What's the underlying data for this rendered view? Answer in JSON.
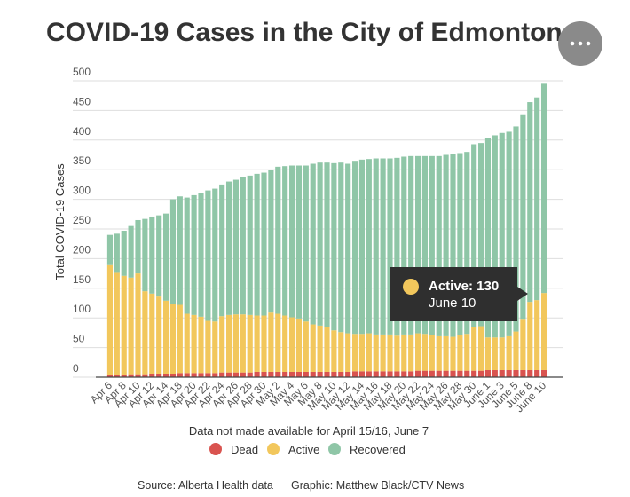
{
  "chart_data": {
    "type": "stacked_bar",
    "title": "COVID-19 Cases in the City of Edmonton",
    "ylabel": "Total COVID-19 Cases",
    "note": "Data not made available for April 15/16, June 7",
    "source": "Source: Alberta Health data",
    "credit": "Graphic: Matthew Black/CTV News",
    "tooltip": {
      "label": "Active: 130",
      "date": "June 10"
    },
    "categories": [
      "Apr 6",
      null,
      "Apr 8",
      null,
      "Apr 10",
      null,
      "Apr 12",
      null,
      "Apr 14",
      null,
      "Apr 18",
      null,
      "Apr 20",
      null,
      "Apr 22",
      null,
      "Apr 24",
      null,
      "Apr 26",
      null,
      "Apr 28",
      null,
      "Apr 30",
      null,
      "May 2",
      null,
      "May 4",
      null,
      "May 6",
      null,
      "May 8",
      null,
      "May 10",
      null,
      "May 12",
      null,
      "May 14",
      null,
      "May 16",
      null,
      "May 18",
      null,
      "May 20",
      null,
      "May 22",
      null,
      "May 24",
      null,
      "May 26",
      null,
      "May 28",
      null,
      "May 30",
      null,
      "June 1",
      null,
      "June 3",
      null,
      "June 5",
      null,
      "June 8",
      null,
      "June 10"
    ],
    "series": [
      {
        "name": "Dead",
        "color": "#d9534f",
        "values": [
          4,
          4,
          4,
          5,
          5,
          5,
          6,
          6,
          6,
          6,
          7,
          7,
          7,
          7,
          7,
          7,
          8,
          8,
          8,
          8,
          8,
          9,
          9,
          9,
          9,
          9,
          9,
          9,
          9,
          9,
          9,
          9,
          9,
          9,
          9,
          10,
          10,
          10,
          10,
          10,
          10,
          10,
          10,
          10,
          11,
          11,
          11,
          11,
          11,
          11,
          11,
          11,
          11,
          11,
          12,
          12,
          12,
          12,
          12,
          12,
          12,
          12,
          12
        ]
      },
      {
        "name": "Active",
        "color": "#f2c75c",
        "values": [
          185,
          172,
          167,
          163,
          170,
          140,
          135,
          130,
          123,
          118,
          115,
          100,
          98,
          95,
          88,
          87,
          95,
          97,
          98,
          98,
          97,
          95,
          95,
          100,
          98,
          95,
          92,
          90,
          85,
          80,
          78,
          75,
          70,
          67,
          65,
          63,
          63,
          64,
          62,
          62,
          62,
          60,
          62,
          62,
          63,
          62,
          60,
          58,
          58,
          57,
          60,
          62,
          73,
          75,
          55,
          55,
          55,
          57,
          65,
          85,
          115,
          118,
          130
        ]
      },
      {
        "name": "Recovered",
        "color": "#8fc6a7",
        "values": [
          51,
          66,
          76,
          87,
          90,
          122,
          130,
          137,
          147,
          176,
          183,
          196,
          202,
          208,
          220,
          224,
          222,
          225,
          227,
          231,
          235,
          239,
          241,
          241,
          248,
          252,
          256,
          258,
          263,
          271,
          275,
          278,
          282,
          286,
          286,
          292,
          294,
          294,
          297,
          297,
          297,
          300,
          300,
          301,
          299,
          300,
          302,
          304,
          306,
          309,
          307,
          307,
          309,
          309,
          337,
          341,
          345,
          345,
          346,
          345,
          337,
          342,
          353
        ]
      }
    ],
    "ylim": [
      0,
      500
    ],
    "yticks": [
      0,
      50,
      100,
      150,
      200,
      250,
      300,
      350,
      400,
      450,
      500
    ],
    "grid": true
  }
}
